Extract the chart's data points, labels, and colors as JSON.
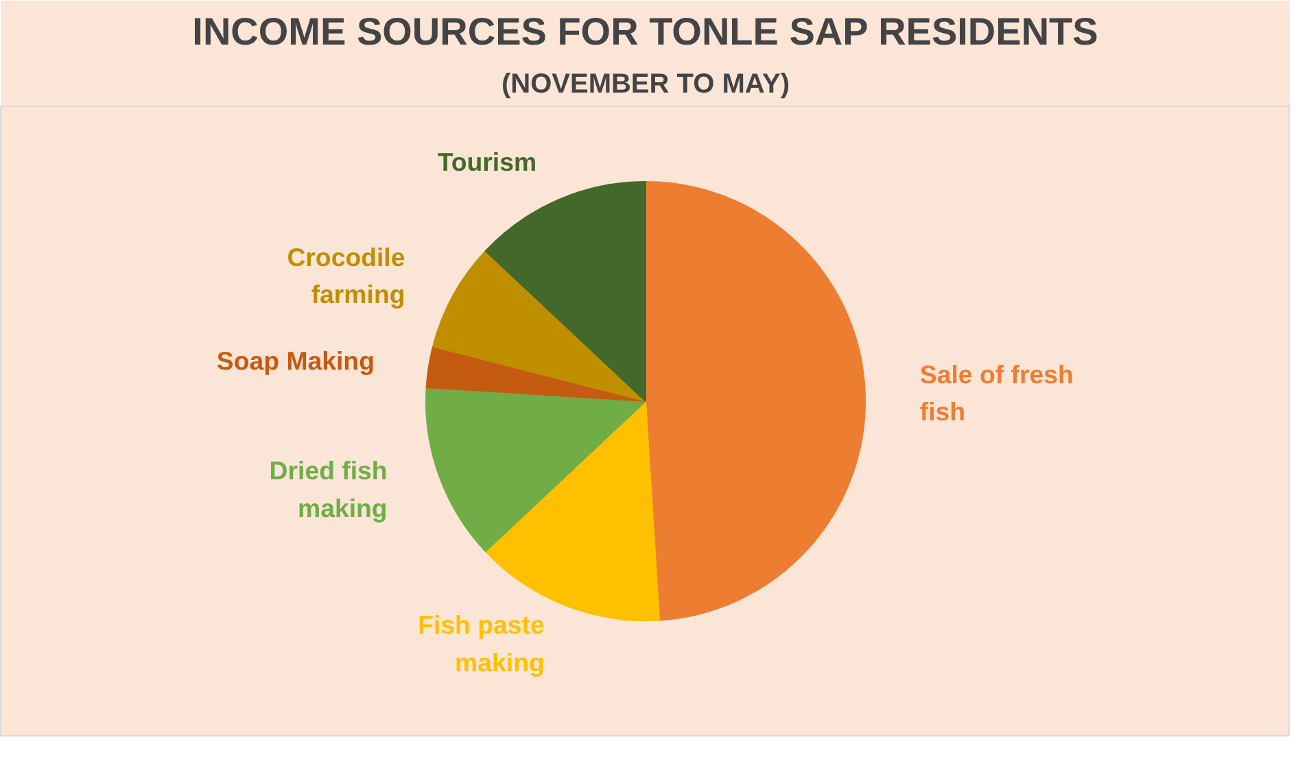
{
  "chart_data": {
    "type": "pie",
    "title": "INCOME SOURCES FOR TONLE SAP RESIDENTS",
    "subtitle": "(NOVEMBER TO MAY)",
    "categories": [
      "Sale of fresh fish",
      "Fish paste making",
      "Dried fish making",
      "Soap Making",
      "Crocodile farming",
      "Tourism"
    ],
    "values": [
      49,
      14,
      13,
      3,
      8,
      13
    ],
    "colors": [
      "#ed7d31",
      "#ffc000",
      "#70ad47",
      "#c55a11",
      "#bf8f00",
      "#43682b"
    ]
  }
}
